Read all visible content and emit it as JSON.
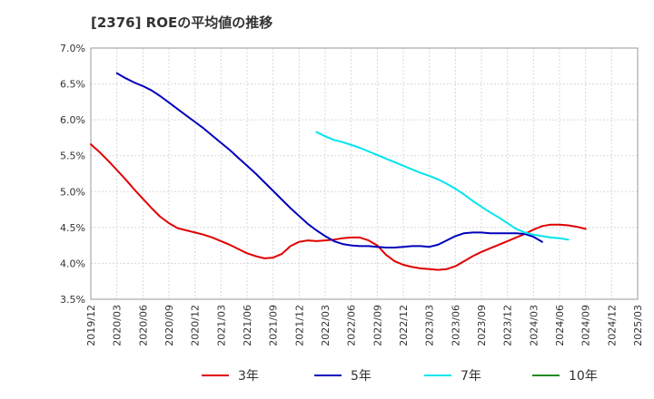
{
  "chart_data": {
    "type": "line",
    "title": "[2376]  ROEの平均値の推移",
    "xlabel": "",
    "ylabel": "",
    "ylim": [
      3.5,
      7.0
    ],
    "grid": true,
    "legend_position": "bottom",
    "y_ticks": [
      "7.0%",
      "6.5%",
      "6.0%",
      "5.5%",
      "5.0%",
      "4.5%",
      "4.0%",
      "3.5%"
    ],
    "y_tick_values": [
      7.0,
      6.5,
      6.0,
      5.5,
      5.0,
      4.5,
      4.0,
      3.5
    ],
    "x_ticks": [
      "2019/12",
      "2020/03",
      "2020/06",
      "2020/09",
      "2020/12",
      "2021/03",
      "2021/06",
      "2021/09",
      "2021/12",
      "2022/03",
      "2022/06",
      "2022/09",
      "2022/12",
      "2023/03",
      "2023/06",
      "2023/09",
      "2023/12",
      "2024/03",
      "2024/06",
      "2024/09",
      "2024/12",
      "2025/03"
    ],
    "series": [
      {
        "name": "3年",
        "color": "#e00000",
        "start_index": 0,
        "values": [
          5.66,
          5.55,
          5.43,
          5.3,
          5.17,
          5.03,
          4.9,
          4.77,
          4.65,
          4.56,
          4.49,
          4.46,
          4.43,
          4.4,
          4.36,
          4.31,
          4.26,
          4.2,
          4.14,
          4.1,
          4.07,
          4.08,
          4.13,
          4.24,
          4.3,
          4.32,
          4.31,
          4.32,
          4.33,
          4.35,
          4.36,
          4.36,
          4.32,
          4.25,
          4.12,
          4.03,
          3.98,
          3.95,
          3.93,
          3.92,
          3.91,
          3.92,
          3.96,
          4.03,
          4.1,
          4.16,
          4.21,
          4.26,
          4.31,
          4.36,
          4.41,
          4.47,
          4.52,
          4.54,
          4.54,
          4.53,
          4.51,
          4.48
        ]
      },
      {
        "name": "5年",
        "color": "#0000bb",
        "start_index": 3,
        "values": [
          6.65,
          6.58,
          6.52,
          6.47,
          6.41,
          6.33,
          6.24,
          6.15,
          6.06,
          5.97,
          5.88,
          5.78,
          5.68,
          5.58,
          5.47,
          5.36,
          5.25,
          5.13,
          5.01,
          4.89,
          4.77,
          4.66,
          4.55,
          4.46,
          4.38,
          4.31,
          4.27,
          4.25,
          4.24,
          4.24,
          4.23,
          4.22,
          4.22,
          4.23,
          4.24,
          4.24,
          4.23,
          4.26,
          4.32,
          4.38,
          4.42,
          4.43,
          4.43,
          4.42,
          4.42,
          4.42,
          4.42,
          4.41,
          4.37,
          4.3
        ]
      },
      {
        "name": "7年",
        "color": "#00e5ee",
        "start_index": 26,
        "values": [
          5.83,
          5.77,
          5.72,
          5.69,
          5.65,
          5.61,
          5.56,
          5.51,
          5.46,
          5.41,
          5.36,
          5.31,
          5.26,
          5.22,
          5.17,
          5.11,
          5.04,
          4.96,
          4.87,
          4.79,
          4.71,
          4.64,
          4.56,
          4.48,
          4.43,
          4.4,
          4.38,
          4.36,
          4.35,
          4.33
        ]
      },
      {
        "name": "10年",
        "color": "#228b22",
        "start_index": 0,
        "values": []
      }
    ]
  }
}
